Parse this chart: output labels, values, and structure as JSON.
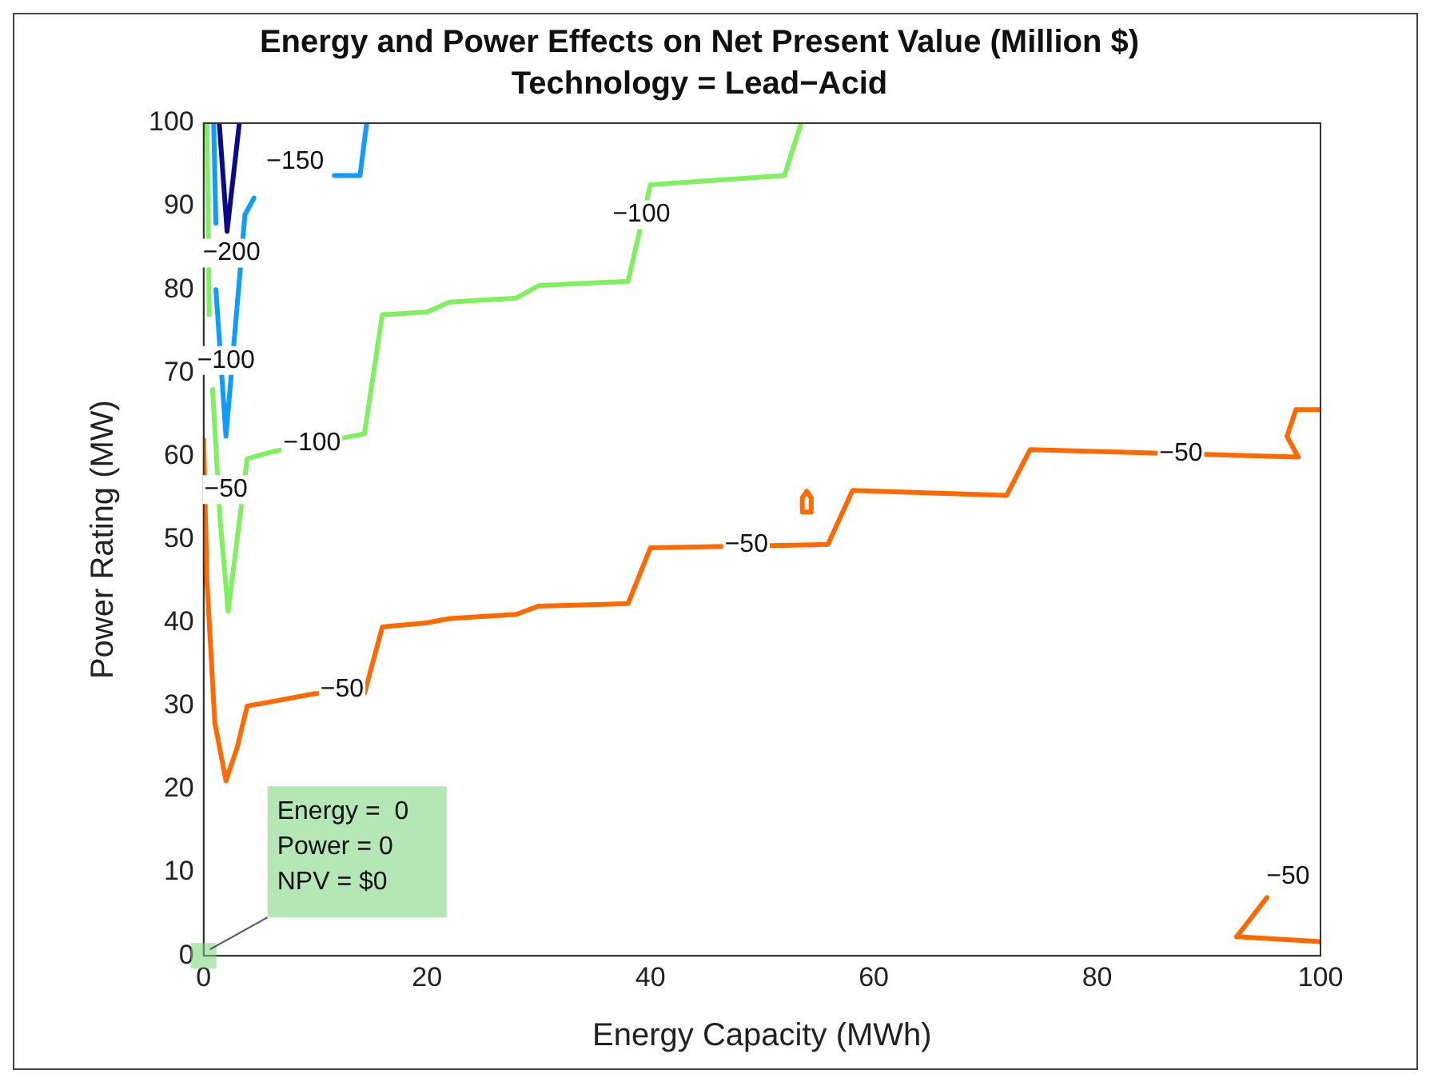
{
  "chart_data": {
    "type": "line",
    "title": "Energy and Power Effects on Net Present Value (Million $)",
    "subtitle": "Technology = Lead−Acid",
    "xlabel": "Energy Capacity (MWh)",
    "ylabel": "Power Rating (MW)",
    "xlim": [
      0,
      100
    ],
    "ylim": [
      0,
      100
    ],
    "xticks": [
      0,
      20,
      40,
      60,
      80,
      100
    ],
    "yticks": [
      0,
      10,
      20,
      30,
      40,
      50,
      60,
      70,
      80,
      90,
      100
    ],
    "grid": false,
    "legend": false,
    "marker": "none",
    "line_style": "solid",
    "series": [
      {
        "color": "#ff6a00",
        "x": [
          0,
          0.3,
          1,
          2,
          3,
          3.9,
          6,
          10,
          14.4,
          16,
          20,
          22,
          28,
          30,
          38,
          40,
          55.9,
          58.1,
          71.9,
          74,
          98,
          97,
          97.8,
          100
        ],
        "values": [
          62,
          45,
          28,
          21,
          25,
          30,
          30.5,
          31.5,
          31.5,
          39.5,
          40,
          40.5,
          41,
          42,
          42.3,
          49,
          49.4,
          55.9,
          55.3,
          60.8,
          59.9,
          62.4,
          65.6,
          65.6
        ]
      },
      {
        "color": "#ff6b02",
        "x": [
          53.6,
          54.4,
          54.4,
          54,
          53.6,
          53.6
        ],
        "values": [
          53.3,
          53.3,
          55,
          55.8,
          55,
          53.6
        ]
      },
      {
        "color": "#fd6900",
        "x": [
          92.5,
          95.2
        ],
        "values": [
          2.3,
          7
        ]
      },
      {
        "color": "#fe6a01",
        "x": [
          92.5,
          100
        ],
        "values": [
          2.3,
          1.7
        ]
      },
      {
        "color": "#80f060",
        "x": [
          0.3,
          0.5,
          null,
          0.8,
          1.5,
          2.2,
          3.9,
          6,
          14.4,
          16,
          20,
          22,
          28,
          30,
          38,
          40,
          52,
          53.5
        ],
        "values": [
          100,
          77,
          null,
          68,
          52,
          41.4,
          59.7,
          60.5,
          62.7,
          77,
          77.3,
          78.5,
          79,
          80.5,
          81,
          92.6,
          93.7,
          100
        ]
      },
      {
        "color": "#0f9bff",
        "x": [
          0.9,
          1.1,
          null,
          1.1,
          2,
          3.7,
          4.5,
          null,
          11.7,
          14,
          14.6
        ],
        "values": [
          100,
          88,
          null,
          80,
          62.4,
          89,
          91,
          null,
          93.7,
          93.7,
          100
        ]
      },
      {
        "color": "#0a0a8c",
        "x": [
          1.4,
          2.1,
          3.2
        ],
        "values": [
          100,
          87,
          100
        ]
      }
    ],
    "annotations": [
      {
        "text": "−150",
        "x": 8.2,
        "y": 95.4
      },
      {
        "text": "−100",
        "x": 39.2,
        "y": 89
      },
      {
        "text": "−100",
        "x": 9.7,
        "y": 61.6
      },
      {
        "text": "−100",
        "x": 2,
        "y": 71.5
      },
      {
        "text": "−200",
        "x": 2.5,
        "y": 84.4
      },
      {
        "text": "−50",
        "x": 2,
        "y": 56
      },
      {
        "text": "−50",
        "x": 12.4,
        "y": 32
      },
      {
        "text": "−50",
        "x": 48.6,
        "y": 49.4
      },
      {
        "text": "−50",
        "x": 87.5,
        "y": 60.3
      },
      {
        "text": "−50",
        "x": 97.1,
        "y": 9.5
      },
      {
        "text": "Energy =  0\nPower = 0\nNPV = $0",
        "x": 0,
        "y": 0
      }
    ]
  }
}
